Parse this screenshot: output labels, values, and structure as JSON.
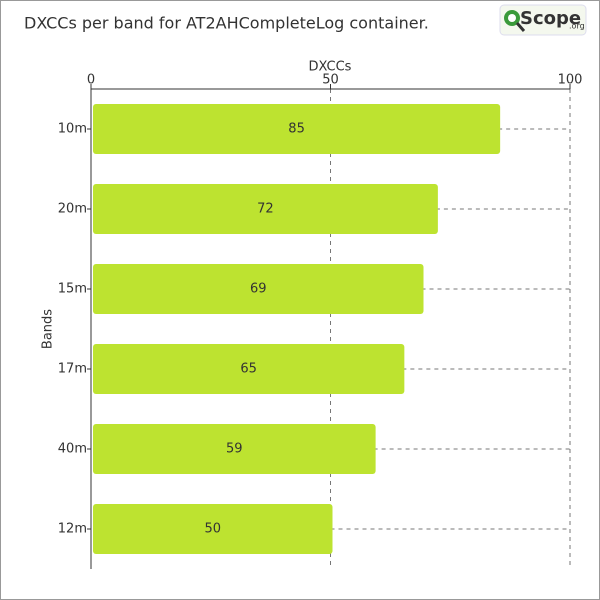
{
  "chart_data": {
    "type": "bar",
    "orientation": "horizontal",
    "title": "DXCCs per band for AT2AHCompleteLog container.",
    "x_label": "DXCCs",
    "y_label": "Bands",
    "categories": [
      "10m",
      "20m",
      "15m",
      "17m",
      "40m",
      "12m"
    ],
    "values": [
      85,
      72,
      69,
      65,
      59,
      50
    ],
    "color": "#bde330",
    "xlim": [
      0,
      100
    ],
    "xticks": [
      0,
      50,
      100
    ],
    "grid": true
  },
  "logo": {
    "text": "Scope",
    "suffix": ".org"
  }
}
